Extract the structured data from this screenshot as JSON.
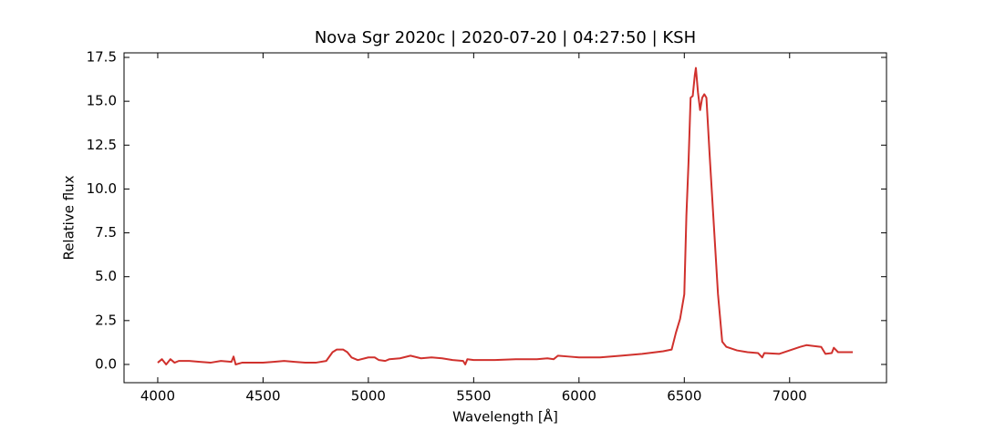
{
  "chart_data": {
    "type": "line",
    "title": "Nova Sgr 2020c | 2020-07-20 | 04:27:50 | KSH",
    "x_label": "Wavelength [Å]",
    "y_label": "Relative flux",
    "xlim": [
      3840,
      7460
    ],
    "ylim": [
      -1.04,
      17.76
    ],
    "xticks": [
      4000,
      4500,
      5000,
      5500,
      6000,
      6500,
      7000
    ],
    "yticks": [
      {
        "value": 0,
        "label": "0.0"
      },
      2.5,
      {
        "value": 5,
        "label": "5.0"
      },
      7.5,
      {
        "value": 10,
        "label": "10.0"
      },
      12.5,
      {
        "value": 15,
        "label": "15.0"
      },
      17.5
    ],
    "x": [
      4000,
      4020,
      4040,
      4060,
      4080,
      4100,
      4150,
      4200,
      4250,
      4300,
      4350,
      4360,
      4370,
      4400,
      4450,
      4500,
      4550,
      4600,
      4650,
      4700,
      4750,
      4800,
      4830,
      4850,
      4880,
      4900,
      4920,
      4950,
      5000,
      5030,
      5050,
      5080,
      5100,
      5150,
      5200,
      5250,
      5300,
      5350,
      5400,
      5450,
      5460,
      5470,
      5500,
      5600,
      5700,
      5800,
      5850,
      5880,
      5900,
      5950,
      6000,
      6100,
      6200,
      6300,
      6400,
      6440,
      6460,
      6480,
      6500,
      6510,
      6520,
      6530,
      6540,
      6550,
      6555,
      6565,
      6575,
      6585,
      6595,
      6605,
      6620,
      6640,
      6660,
      6680,
      6700,
      6750,
      6800,
      6850,
      6870,
      6880,
      6950,
      7000,
      7050,
      7080,
      7150,
      7170,
      7200,
      7210,
      7230,
      7280,
      7300
    ],
    "series": [
      {
        "name": "Flux",
        "color": "#d0312d",
        "values": [
          0.1,
          0.3,
          0.0,
          0.3,
          0.1,
          0.2,
          0.2,
          0.15,
          0.1,
          0.2,
          0.15,
          0.45,
          0.0,
          0.1,
          0.1,
          0.1,
          0.15,
          0.2,
          0.15,
          0.1,
          0.1,
          0.2,
          0.7,
          0.85,
          0.85,
          0.7,
          0.4,
          0.25,
          0.4,
          0.4,
          0.25,
          0.2,
          0.3,
          0.35,
          0.5,
          0.35,
          0.4,
          0.35,
          0.25,
          0.2,
          0.0,
          0.3,
          0.25,
          0.25,
          0.3,
          0.3,
          0.35,
          0.3,
          0.5,
          0.45,
          0.4,
          0.4,
          0.5,
          0.6,
          0.75,
          0.85,
          1.8,
          2.6,
          4.0,
          8.5,
          11.5,
          15.2,
          15.3,
          16.5,
          16.9,
          15.5,
          14.5,
          15.2,
          15.4,
          15.2,
          12.0,
          8.0,
          4.0,
          1.3,
          1.0,
          0.8,
          0.7,
          0.65,
          0.4,
          0.65,
          0.6,
          0.8,
          1.0,
          1.1,
          1.0,
          0.6,
          0.65,
          0.95,
          0.7,
          0.7,
          0.7
        ]
      }
    ]
  }
}
